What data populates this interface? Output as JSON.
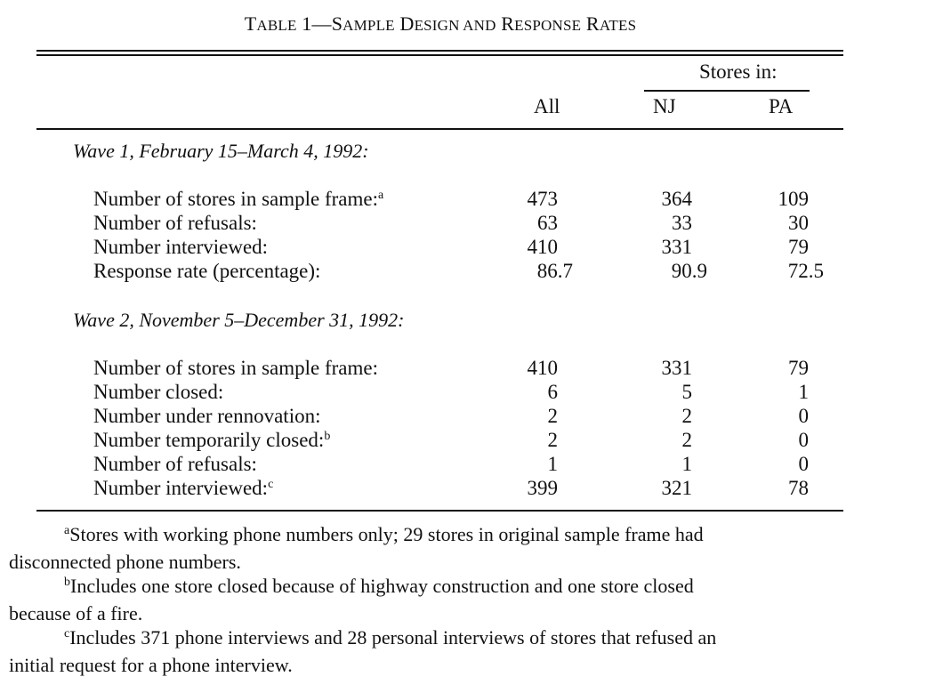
{
  "title": {
    "lead": "T",
    "rest1": "ABLE",
    "num": " 1—",
    "s": "S",
    "rest2": "AMPLE",
    "d": " D",
    "rest3": "ESIGN AND",
    "r": " R",
    "rest4": "ESPONSE",
    "r2": " R",
    "rest5": "ATES"
  },
  "header": {
    "stores_in": "Stores in:",
    "all": "All",
    "nj": "NJ",
    "pa": "PA"
  },
  "wave1": {
    "label": "Wave 1, February 15–March 4, 1992:",
    "rows": [
      {
        "label": "Number of stores in sample frame:",
        "sup": "a",
        "all": "473",
        "nj": "364",
        "pa": "109"
      },
      {
        "label": "Number of refusals:",
        "sup": "",
        "all": "63",
        "nj": "33",
        "pa": "30"
      },
      {
        "label": "Number interviewed:",
        "sup": "",
        "all": "410",
        "nj": "331",
        "pa": "79"
      },
      {
        "label": "Response rate (percentage):",
        "sup": "",
        "all": "86.7",
        "nj": "90.9",
        "pa": "72.5"
      }
    ]
  },
  "wave2": {
    "label": "Wave 2, November 5–December 31, 1992:",
    "rows": [
      {
        "label": "Number of stores in sample frame:",
        "sup": "",
        "all": "410",
        "nj": "331",
        "pa": "79"
      },
      {
        "label": "Number closed:",
        "sup": "",
        "all": "6",
        "nj": "5",
        "pa": "1"
      },
      {
        "label": "Number under rennovation:",
        "sup": "",
        "all": "2",
        "nj": "2",
        "pa": "0"
      },
      {
        "label": "Number temporarily closed:",
        "sup": "b",
        "all": "2",
        "nj": "2",
        "pa": "0"
      },
      {
        "label": "Number of refusals:",
        "sup": "",
        "all": "1",
        "nj": "1",
        "pa": "0"
      },
      {
        "label": "Number interviewed:",
        "sup": "c",
        "all": "399",
        "nj": "321",
        "pa": "78"
      }
    ]
  },
  "notes": [
    {
      "mark": "a",
      "line1": "Stores with working phone numbers only; 29 stores in original sample frame had",
      "line2": "disconnected phone numbers."
    },
    {
      "mark": "b",
      "line1": "Includes one store closed because of highway construction and one store closed",
      "line2": "because of a fire."
    },
    {
      "mark": "c",
      "line1": "Includes 371 phone interviews and 28 personal interviews of stores that refused an",
      "line2": "initial request for a phone interview."
    }
  ]
}
